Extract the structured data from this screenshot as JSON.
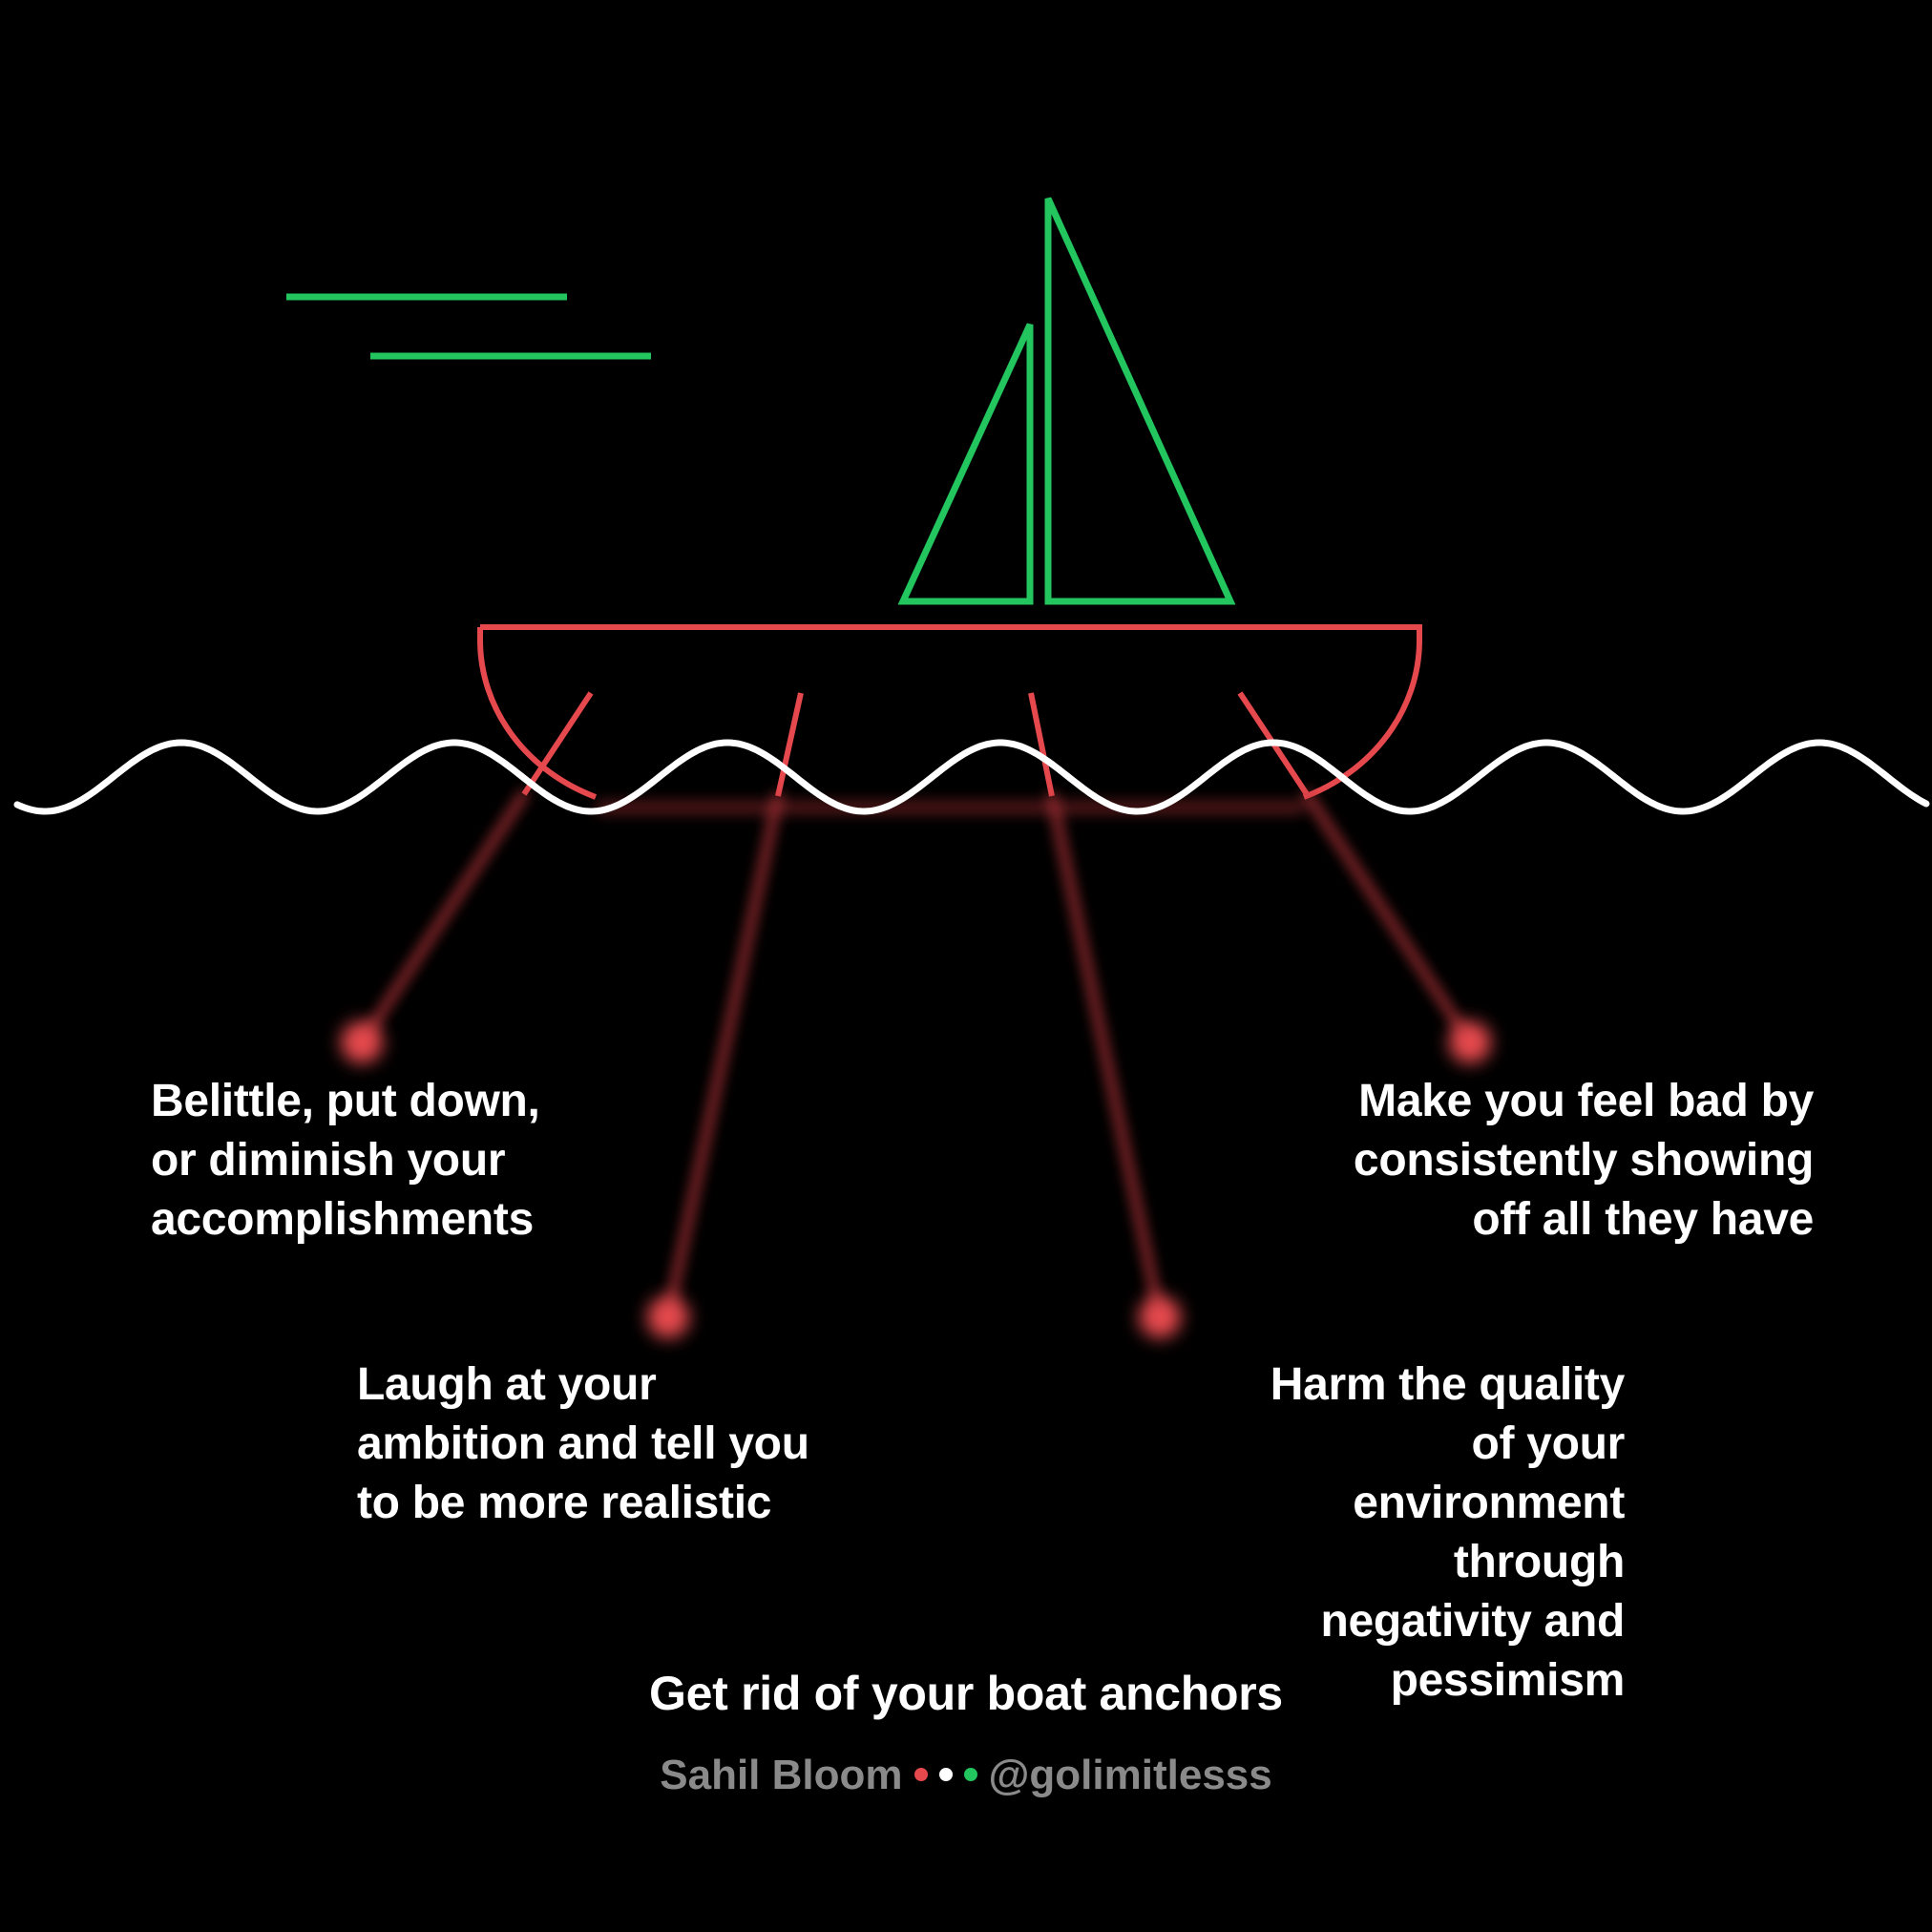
{
  "labels": {
    "belittle": "Belittle, put down,\nor diminish your\naccomplishments",
    "laugh": "Laugh at your\nambition and tell you\nto be more realistic",
    "harm": "Harm the quality of your\nenvironment through\nnegativity and pessimism",
    "show_off": "Make you feel bad by\nconsistently showing\noff all they have"
  },
  "caption": "Get rid of your boat anchors",
  "credit": {
    "author": "Sahil Bloom",
    "handle": "@golimitlesss"
  },
  "colors": {
    "background": "#000000",
    "sail": "#22c55e",
    "hull": "#e5484d",
    "water": "#ffffff",
    "anchor_glow": "#e5484d",
    "text": "#ffffff",
    "credit_text": "#8a8a8a",
    "dot_red": "#e5484d",
    "dot_white": "#ffffff",
    "dot_green": "#22c55e"
  }
}
